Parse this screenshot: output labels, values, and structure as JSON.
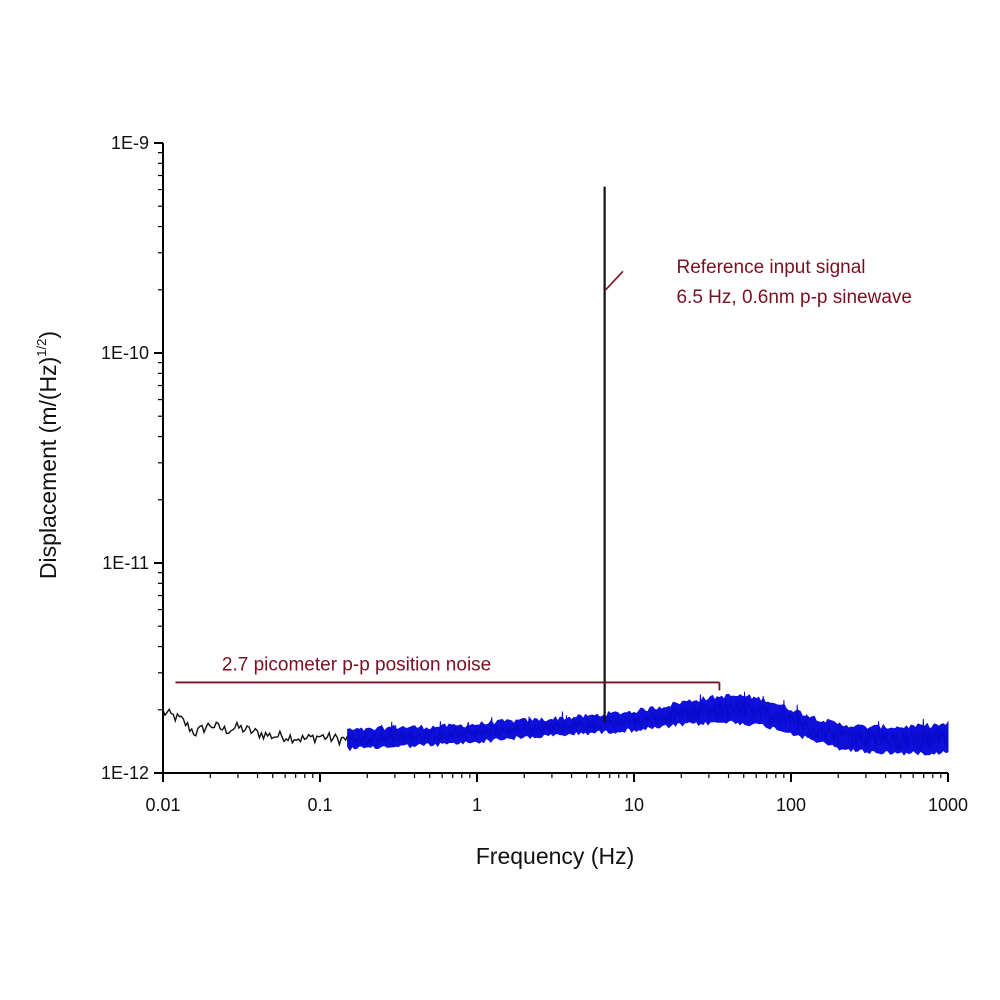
{
  "chart_data": {
    "type": "line",
    "xlabel": "Frequency (Hz)",
    "ylabel": "Displacement (m/(Hz)",
    "ylabel_superscript": "1/2",
    "ylabel_close": ")",
    "x_scale": "log",
    "y_scale": "log",
    "xlim": [
      0.01,
      1000
    ],
    "ylim": [
      1e-12,
      1e-09
    ],
    "x_ticks": [
      {
        "value": 0.01,
        "label": "0.01"
      },
      {
        "value": 0.1,
        "label": "0.1"
      },
      {
        "value": 1,
        "label": "1"
      },
      {
        "value": 10,
        "label": "10"
      },
      {
        "value": 100,
        "label": "100"
      },
      {
        "value": 1000,
        "label": "1000"
      }
    ],
    "y_ticks": [
      {
        "value": 1e-12,
        "label": "1E-12"
      },
      {
        "value": 1e-11,
        "label": "1E-11"
      },
      {
        "value": 1e-10,
        "label": "1E-10"
      },
      {
        "value": 1e-09,
        "label": "1E-9"
      }
    ],
    "grid": false,
    "colors": {
      "low_frequency_segment": "#111111",
      "noise_band": "#1010dd",
      "peak": "#111111",
      "annotation": "#7a1020"
    },
    "low_frequency_segment": {
      "x": [
        0.01,
        0.013,
        0.016,
        0.02,
        0.025,
        0.03,
        0.04,
        0.05,
        0.06,
        0.08,
        0.1,
        0.13,
        0.15
      ],
      "y": [
        1.95e-12,
        1.8e-12,
        1.55e-12,
        1.7e-12,
        1.6e-12,
        1.65e-12,
        1.55e-12,
        1.5e-12,
        1.5e-12,
        1.45e-12,
        1.5e-12,
        1.45e-12,
        1.45e-12
      ]
    },
    "noise_band": {
      "x": [
        0.15,
        0.2,
        0.3,
        0.5,
        0.7,
        1,
        1.5,
        2,
        3,
        5,
        7,
        10,
        15,
        20,
        30,
        40,
        50,
        70,
        100,
        150,
        200,
        300,
        500,
        700,
        1000
      ],
      "y_low": [
        1.35e-12,
        1.35e-12,
        1.38e-12,
        1.4e-12,
        1.42e-12,
        1.45e-12,
        1.5e-12,
        1.52e-12,
        1.55e-12,
        1.6e-12,
        1.62e-12,
        1.65e-12,
        1.7e-12,
        1.75e-12,
        1.78e-12,
        1.8e-12,
        1.78e-12,
        1.72e-12,
        1.6e-12,
        1.45e-12,
        1.35e-12,
        1.3e-12,
        1.28e-12,
        1.28e-12,
        1.3e-12
      ],
      "y_high": [
        1.55e-12,
        1.55e-12,
        1.6e-12,
        1.6e-12,
        1.62e-12,
        1.65e-12,
        1.7e-12,
        1.72e-12,
        1.75e-12,
        1.8e-12,
        1.85e-12,
        1.9e-12,
        2e-12,
        2.1e-12,
        2.2e-12,
        2.25e-12,
        2.25e-12,
        2.15e-12,
        1.95e-12,
        1.75e-12,
        1.65e-12,
        1.6e-12,
        1.6e-12,
        1.62e-12,
        1.65e-12
      ]
    },
    "peak": {
      "x": 6.5,
      "y": 6.2e-10
    },
    "annotations": [
      {
        "lines": [
          "Reference input signal",
          "6.5 Hz, 0.6nm p-p sinewave"
        ],
        "text_x": 25,
        "text_y": 2.3e-10,
        "pointer_from": [
          8.5,
          2.45e-10
        ],
        "pointer_to": [
          6.6,
          2e-10
        ]
      },
      {
        "lines": [
          "2.7 picometer p-p position noise"
        ],
        "text_x": 0.03,
        "text_y": 2.95e-12,
        "bracket_x": [
          0.012,
          35
        ],
        "bracket_y": 2.7e-12
      }
    ]
  }
}
